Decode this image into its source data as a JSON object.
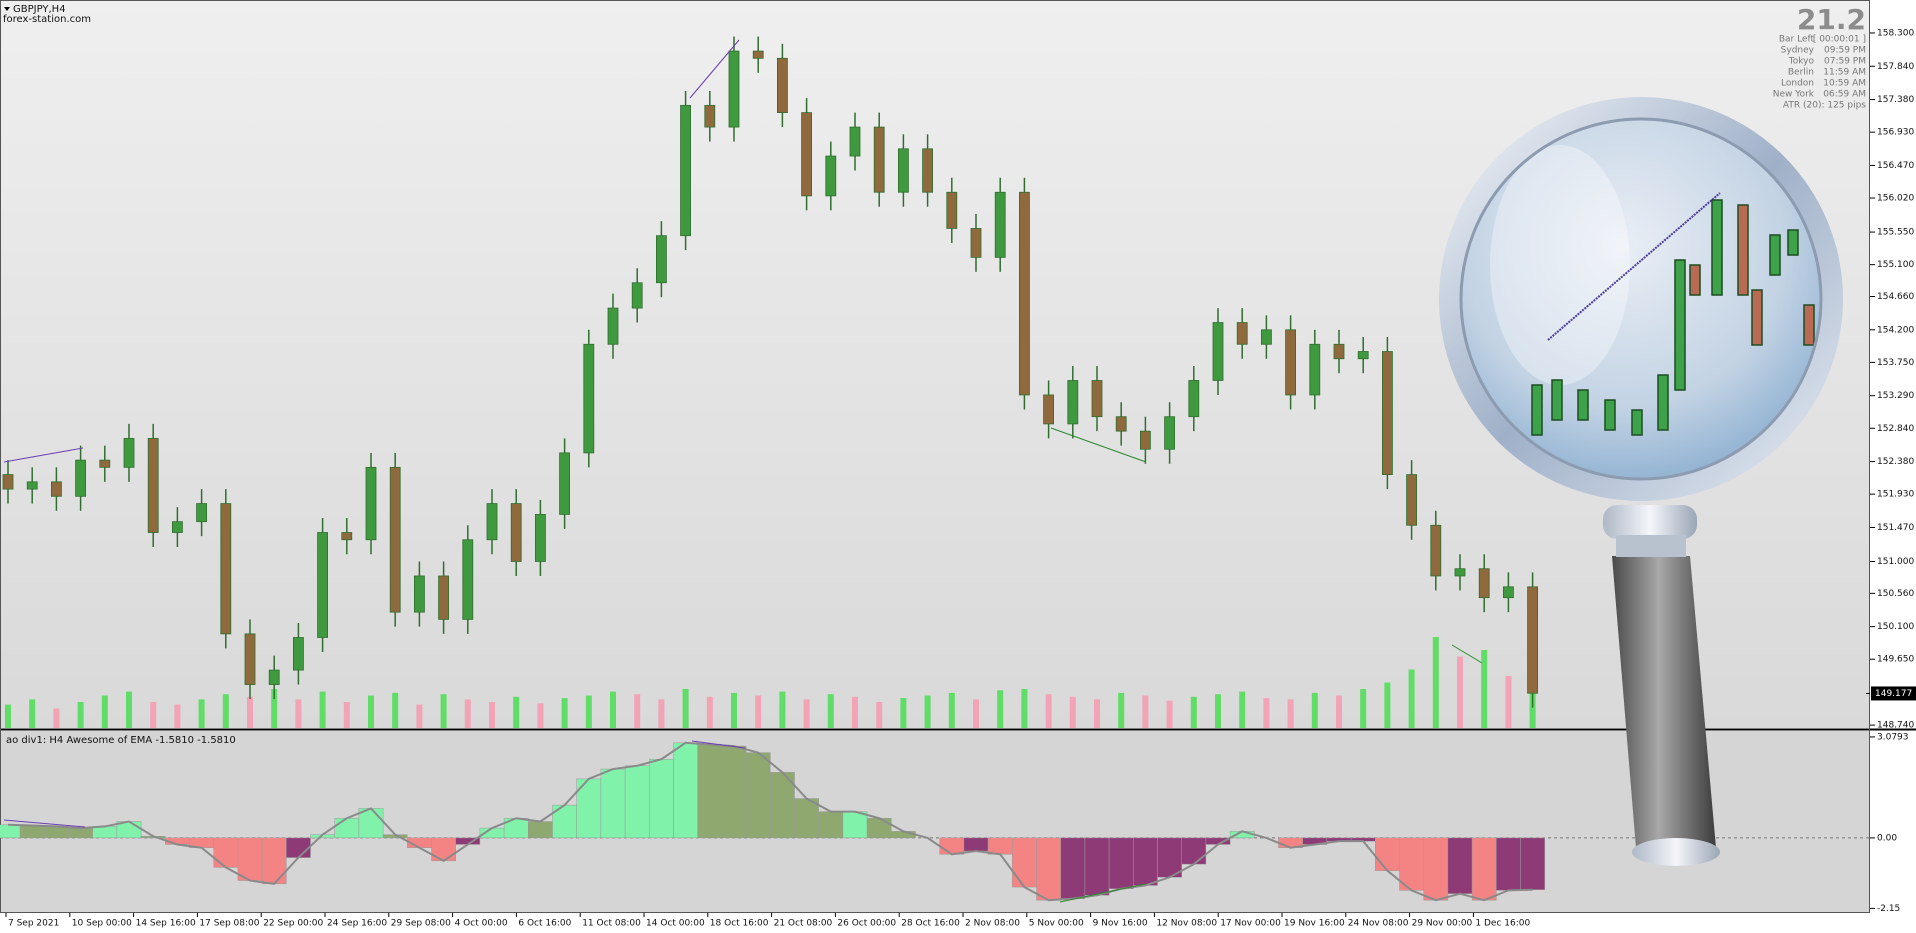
{
  "header": {
    "symbol": "GBPJPY,H4",
    "site": "forex-station.com"
  },
  "info": {
    "big": "21.2",
    "rows": [
      [
        "Bar Left",
        "[ 00:00:01 ]"
      ],
      [
        "Sydney",
        "09:59 PM"
      ],
      [
        "Tokyo",
        "07:59 PM"
      ],
      [
        "Berlin",
        "11:59 AM"
      ],
      [
        "London",
        "10:59 AM"
      ],
      [
        "New York",
        "06:59 AM"
      ]
    ],
    "atr": "ATR (20): 125 pips"
  },
  "chart_data": [
    {
      "type": "candlestick",
      "open": [
        152.2,
        152.0,
        152.1,
        151.9,
        152.4,
        152.3,
        152.7,
        151.4,
        151.55,
        151.8,
        150.0,
        149.3,
        149.5,
        149.95,
        151.4,
        151.3,
        152.3,
        150.3,
        150.8,
        150.2,
        151.3,
        151.8,
        151.0,
        151.65,
        152.5,
        154.0,
        154.5,
        154.85,
        155.5,
        157.3,
        157.0,
        158.05,
        157.95,
        157.2,
        156.05,
        156.6,
        157.0,
        156.1,
        156.7,
        156.1,
        155.6,
        155.2,
        156.1,
        153.3,
        152.9,
        153.5,
        153.0,
        152.8,
        152.55,
        153.0,
        153.5,
        154.3,
        154.0,
        154.2,
        153.3,
        154.0,
        153.8,
        153.9,
        152.2,
        151.5,
        150.8,
        150.9,
        150.5,
        150.65
      ],
      "high": [
        152.4,
        152.3,
        152.3,
        152.6,
        152.6,
        152.9,
        152.9,
        151.75,
        152.0,
        152.0,
        150.2,
        149.7,
        150.15,
        151.6,
        151.6,
        152.5,
        152.5,
        151.0,
        151.0,
        151.5,
        152.0,
        152.0,
        151.85,
        152.7,
        154.2,
        154.7,
        155.05,
        155.7,
        157.5,
        157.5,
        158.25,
        158.25,
        158.15,
        157.4,
        156.8,
        157.2,
        157.2,
        156.9,
        156.9,
        156.3,
        155.8,
        156.3,
        156.3,
        153.5,
        153.7,
        153.7,
        153.2,
        153.0,
        153.2,
        153.7,
        154.5,
        154.5,
        154.4,
        154.4,
        154.2,
        154.2,
        154.1,
        154.1,
        152.4,
        151.7,
        151.1,
        151.1,
        150.85,
        150.85
      ],
      "low": [
        151.8,
        151.8,
        151.7,
        151.7,
        152.1,
        152.1,
        151.2,
        151.2,
        151.35,
        149.8,
        149.1,
        149.1,
        149.3,
        149.75,
        151.1,
        151.1,
        150.1,
        150.1,
        150.0,
        150.0,
        151.1,
        150.8,
        150.8,
        151.45,
        152.3,
        153.8,
        154.3,
        154.65,
        155.3,
        156.8,
        156.8,
        157.75,
        157.0,
        155.85,
        155.85,
        156.4,
        155.9,
        155.9,
        155.9,
        155.4,
        155.0,
        155.0,
        153.1,
        152.7,
        152.7,
        152.8,
        152.6,
        152.35,
        152.35,
        152.8,
        153.3,
        153.8,
        153.8,
        153.1,
        153.1,
        153.6,
        153.6,
        152.0,
        151.3,
        150.6,
        150.6,
        150.3,
        150.3,
        148.98
      ],
      "close": [
        152.0,
        152.1,
        151.9,
        152.4,
        152.3,
        152.7,
        151.4,
        151.55,
        151.8,
        150.0,
        149.3,
        149.5,
        149.95,
        151.4,
        151.3,
        152.3,
        150.3,
        150.8,
        150.2,
        151.3,
        151.8,
        151.0,
        151.65,
        152.5,
        154.0,
        154.5,
        154.85,
        155.5,
        157.3,
        157.0,
        158.05,
        157.95,
        157.2,
        156.05,
        156.6,
        157.0,
        156.1,
        156.7,
        156.1,
        155.6,
        155.2,
        156.1,
        153.3,
        152.9,
        153.5,
        153.0,
        152.8,
        152.55,
        153.0,
        153.5,
        154.3,
        154.0,
        154.2,
        153.3,
        154.0,
        153.8,
        153.9,
        152.2,
        151.5,
        150.8,
        150.9,
        150.5,
        150.65,
        149.18
      ],
      "volume": [
        18,
        22,
        15,
        20,
        25,
        28,
        20,
        18,
        22,
        26,
        24,
        30,
        22,
        28,
        20,
        25,
        27,
        18,
        26,
        22,
        20,
        24,
        19,
        23,
        25,
        28,
        26,
        22,
        30,
        24,
        27,
        25,
        28,
        22,
        26,
        24,
        20,
        23,
        25,
        27,
        22,
        29,
        30,
        26,
        24,
        22,
        27,
        25,
        21,
        24,
        26,
        28,
        23,
        22,
        27,
        25,
        30,
        35,
        45,
        70,
        55,
        60,
        40,
        50
      ],
      "vlim": [
        0,
        100
      ],
      "colors": {
        "up": "#3f9a3f",
        "down": "#8e6a3c",
        "wick": "#2f6e2f",
        "volume_up": "#5fdd66",
        "volume_down": "#f2a3b6"
      },
      "ylim": [
        148.7,
        158.7
      ],
      "yticks": [
        {
          "value": 158.3,
          "label": "158.300"
        },
        {
          "value": 157.84,
          "label": "157.840"
        },
        {
          "value": 157.38,
          "label": "157.380"
        },
        {
          "value": 156.93,
          "label": "156.930"
        },
        {
          "value": 156.47,
          "label": "156.470"
        },
        {
          "value": 156.02,
          "label": "156.020"
        },
        {
          "value": 155.55,
          "label": "155.550"
        },
        {
          "value": 155.1,
          "label": "155.100"
        },
        {
          "value": 154.66,
          "label": "154.660"
        },
        {
          "value": 154.2,
          "label": "154.200"
        },
        {
          "value": 153.75,
          "label": "153.750"
        },
        {
          "value": 153.29,
          "label": "153.290"
        },
        {
          "value": 152.84,
          "label": "152.840"
        },
        {
          "value": 152.38,
          "label": "152.380"
        },
        {
          "value": 151.93,
          "label": "151.930"
        },
        {
          "value": 151.47,
          "label": "151.470"
        },
        {
          "value": 151.0,
          "label": "151.000"
        },
        {
          "value": 150.56,
          "label": "150.560"
        },
        {
          "value": 150.1,
          "label": "150.100"
        },
        {
          "value": 149.65,
          "label": "149.650"
        },
        {
          "value": 148.74,
          "label": "148.740"
        }
      ],
      "last_price": {
        "value": 149.177,
        "label": "149.177"
      }
    },
    {
      "type": "histogram-oscillator",
      "title": "ao div1: H4 Awesome of EMA -1.5810 -1.5810",
      "values": [
        0.4,
        0.38,
        0.35,
        0.3,
        0.35,
        0.5,
        0.05,
        -0.2,
        -0.3,
        -0.9,
        -1.3,
        -1.4,
        -0.6,
        0.1,
        0.6,
        0.9,
        0.1,
        -0.3,
        -0.7,
        -0.2,
        0.3,
        0.6,
        0.5,
        1.0,
        1.8,
        2.1,
        2.2,
        2.4,
        2.9,
        2.85,
        2.8,
        2.6,
        2.0,
        1.2,
        0.8,
        0.8,
        0.6,
        0.2,
        0.0,
        -0.5,
        -0.4,
        -0.5,
        -1.5,
        -1.9,
        -1.85,
        -1.75,
        -1.55,
        -1.45,
        -1.2,
        -0.8,
        -0.2,
        0.2,
        0.0,
        -0.3,
        -0.2,
        -0.1,
        -0.1,
        -1.0,
        -1.6,
        -1.9,
        -1.7,
        -1.9,
        -1.6,
        -1.58
      ],
      "colors": {
        "pos_rise": "#80f2aa",
        "pos_fall": "#8ea870",
        "neg_fall": "#f48484",
        "neg_rise": "#8e3a76",
        "outline": "#8a8a8a"
      },
      "ylim": [
        -2.29,
        3.26
      ],
      "yticks": [
        3.0793,
        {
          "value": 0,
          "label": "0.00"
        },
        -2.15
      ],
      "x_tick_labels": [
        "7 Sep 2021",
        "10 Sep 00:00",
        "14 Sep 16:00",
        "17 Sep 08:00",
        "22 Sep 00:00",
        "24 Sep 16:00",
        "29 Sep 08:00",
        "4 Oct 00:00",
        "6 Oct 16:00",
        "11 Oct 08:00",
        "14 Oct 00:00",
        "18 Oct 16:00",
        "21 Oct 08:00",
        "26 Oct 00:00",
        "28 Oct 16:00",
        "2 Nov 08:00",
        "5 Nov 00:00",
        "9 Nov 16:00",
        "12 Nov 08:00",
        "17 Nov 00:00",
        "19 Nov 16:00",
        "24 Nov 08:00",
        "29 Nov 00:00",
        "1 Dec 16:00"
      ]
    }
  ]
}
